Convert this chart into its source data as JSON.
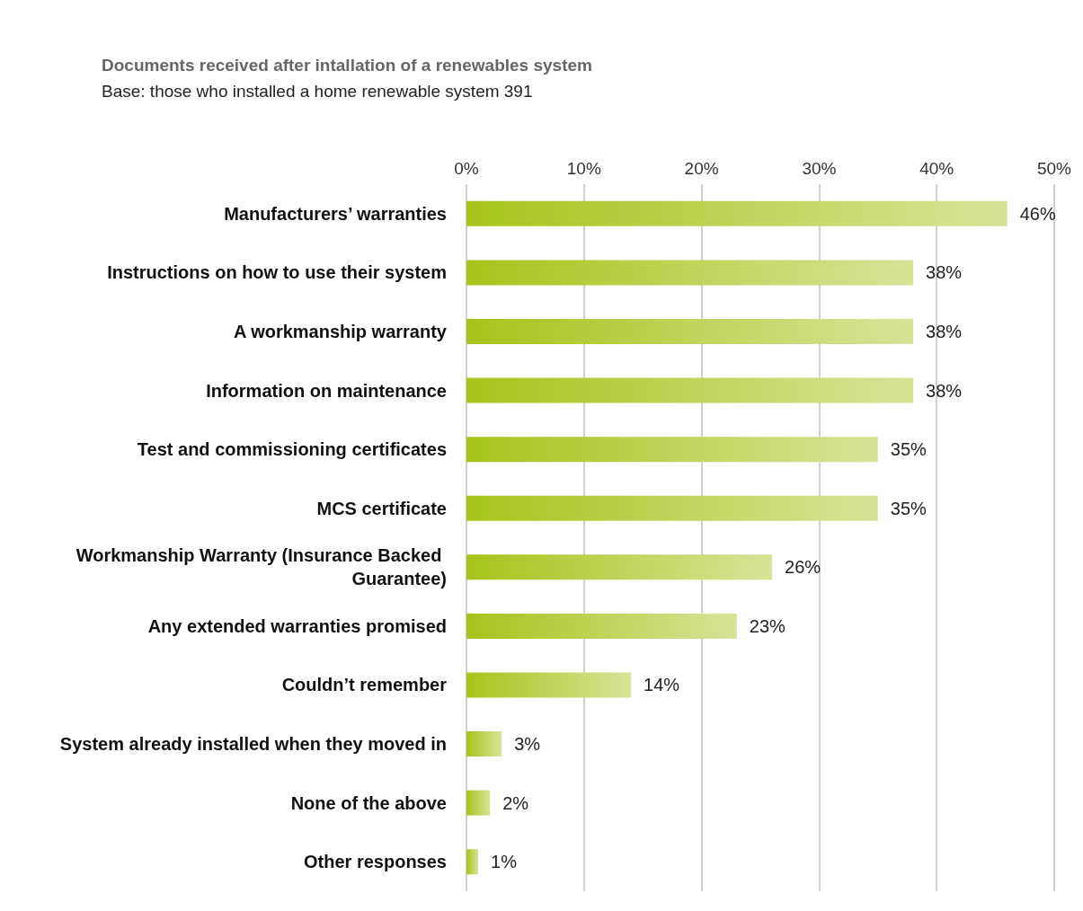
{
  "chart_data": {
    "type": "bar",
    "orientation": "horizontal",
    "title": "Documents received after intallation of a renewables system",
    "subtitle": "Base: those who installed a home renewable system 391",
    "categories": [
      "Manufacturers’ warranties",
      "Instructions on how to use their system",
      "A workmanship warranty",
      "Information on maintenance",
      "Test and commissioning certificates",
      "MCS certificate",
      "Workmanship Warranty (Insurance Backed Guarantee)",
      "Any extended warranties promised",
      "Couldn’t remember",
      "System already installed when they moved in",
      "None of the above",
      "Other responses"
    ],
    "values": [
      46,
      38,
      38,
      38,
      35,
      35,
      26,
      23,
      14,
      3,
      2,
      1
    ],
    "value_labels": [
      "46%",
      "38%",
      "38%",
      "38%",
      "35%",
      "35%",
      "26%",
      "23%",
      "14%",
      "3%",
      "2%",
      "1%"
    ],
    "color": "#a6c41a",
    "xlim": [
      0,
      50
    ],
    "xticks": [
      {
        "value": 0,
        "label": "0%"
      },
      {
        "value": 10,
        "label": "10%"
      },
      {
        "value": 20,
        "label": "20%"
      },
      {
        "value": 30,
        "label": "30%"
      },
      {
        "value": 40,
        "label": "40%"
      },
      {
        "value": 50,
        "label": "50%"
      }
    ],
    "grid": "x"
  }
}
